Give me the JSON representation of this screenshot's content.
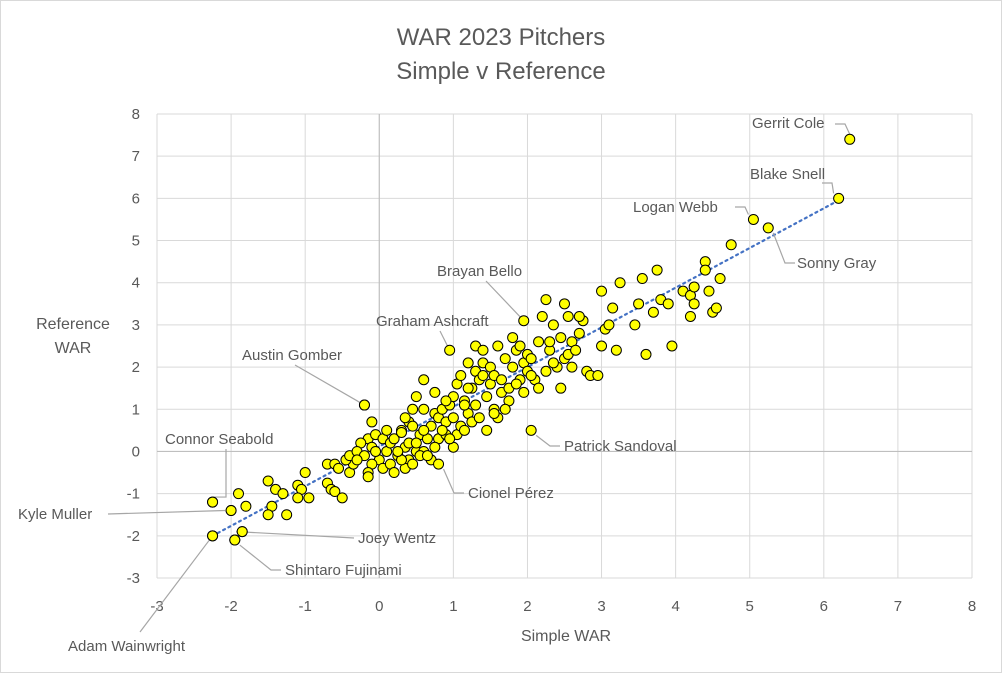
{
  "chart_data": {
    "type": "scatter",
    "title": "WAR 2023 Pitchers",
    "subtitle": "Simple v Reference",
    "xlabel": "Simple WAR",
    "ylabel_lines": [
      "Reference",
      "WAR"
    ],
    "xlim": [
      -3,
      8
    ],
    "ylim": [
      -3,
      8
    ],
    "xticks": [
      -3,
      -2,
      -1,
      0,
      1,
      2,
      3,
      4,
      5,
      6,
      7,
      8
    ],
    "yticks": [
      -3,
      -2,
      -1,
      0,
      1,
      2,
      3,
      4,
      5,
      6,
      7,
      8
    ],
    "grid": true,
    "trendline": {
      "style": "dotted",
      "color": "#4472c4",
      "from": [
        -2.25,
        -2.0
      ],
      "to": [
        6.25,
        6.0
      ]
    },
    "marker": {
      "fill": "#ffff00",
      "stroke": "#000000"
    },
    "labeled_points": [
      {
        "name": "Gerrit Cole",
        "x": 6.35,
        "y": 7.4
      },
      {
        "name": "Blake Snell",
        "x": 6.2,
        "y": 6.0
      },
      {
        "name": "Logan Webb",
        "x": 5.05,
        "y": 5.5
      },
      {
        "name": "Sonny Gray",
        "x": 5.25,
        "y": 5.3
      },
      {
        "name": "Brayan Bello",
        "x": 1.95,
        "y": 3.1
      },
      {
        "name": "Graham Ashcraft",
        "x": 0.95,
        "y": 2.4
      },
      {
        "name": "Austin Gomber",
        "x": -0.2,
        "y": 1.1
      },
      {
        "name": "Patrick Sandoval",
        "x": 2.05,
        "y": 0.5
      },
      {
        "name": "Cionel Pérez",
        "x": 0.8,
        "y": -0.3
      },
      {
        "name": "Connor Seabold",
        "x": -2.25,
        "y": -1.2
      },
      {
        "name": "Kyle Muller",
        "x": -2.0,
        "y": -1.4
      },
      {
        "name": "Joey Wentz",
        "x": -1.85,
        "y": -1.9
      },
      {
        "name": "Shintaro Fujinami",
        "x": -1.95,
        "y": -2.1
      },
      {
        "name": "Adam Wainwright",
        "x": -2.25,
        "y": -2.0
      }
    ],
    "points": [
      [
        -2.25,
        -1.2
      ],
      [
        -2.0,
        -1.4
      ],
      [
        -1.85,
        -1.9
      ],
      [
        -1.95,
        -2.1
      ],
      [
        -2.25,
        -2.0
      ],
      [
        -1.9,
        -1.0
      ],
      [
        -1.8,
        -1.3
      ],
      [
        -1.5,
        -0.7
      ],
      [
        -1.4,
        -0.9
      ],
      [
        -1.3,
        -1.0
      ],
      [
        -1.45,
        -1.3
      ],
      [
        -1.5,
        -1.5
      ],
      [
        -1.25,
        -1.5
      ],
      [
        -1.1,
        -0.8
      ],
      [
        -1.05,
        -0.9
      ],
      [
        -1.1,
        -1.1
      ],
      [
        -0.95,
        -1.1
      ],
      [
        -1.0,
        -0.5
      ],
      [
        -0.7,
        -0.3
      ],
      [
        -0.6,
        -0.3
      ],
      [
        -0.7,
        -0.75
      ],
      [
        -0.65,
        -0.9
      ],
      [
        -0.6,
        -0.95
      ],
      [
        -0.5,
        -1.1
      ],
      [
        -0.4,
        -0.5
      ],
      [
        -0.35,
        -0.3
      ],
      [
        -0.45,
        -0.2
      ],
      [
        -0.4,
        -0.1
      ],
      [
        -0.2,
        1.1
      ],
      [
        -0.1,
        0.7
      ],
      [
        -0.15,
        0.3
      ],
      [
        -0.25,
        0.2
      ],
      [
        -0.3,
        0.0
      ],
      [
        -0.2,
        -0.1
      ],
      [
        -0.1,
        0.1
      ],
      [
        -0.05,
        0.4
      ],
      [
        0.05,
        0.3
      ],
      [
        0.1,
        0.0
      ],
      [
        0.15,
        0.2
      ],
      [
        0.0,
        -0.2
      ],
      [
        -0.1,
        -0.3
      ],
      [
        -0.15,
        -0.5
      ],
      [
        -0.15,
        -0.6
      ],
      [
        0.05,
        -0.4
      ],
      [
        0.2,
        0.3
      ],
      [
        0.3,
        0.5
      ],
      [
        0.35,
        0.1
      ],
      [
        0.4,
        0.2
      ],
      [
        0.25,
        -0.1
      ],
      [
        0.3,
        0.45
      ],
      [
        0.4,
        0.7
      ],
      [
        0.45,
        1.0
      ],
      [
        0.5,
        1.3
      ],
      [
        0.6,
        1.7
      ],
      [
        0.45,
        0.6
      ],
      [
        0.55,
        0.4
      ],
      [
        0.5,
        0.0
      ],
      [
        0.4,
        -0.2
      ],
      [
        0.35,
        -0.4
      ],
      [
        0.6,
        0.0
      ],
      [
        0.65,
        0.3
      ],
      [
        0.7,
        0.6
      ],
      [
        0.75,
        0.9
      ],
      [
        0.8,
        0.8
      ],
      [
        0.85,
        1.0
      ],
      [
        0.9,
        0.7
      ],
      [
        0.7,
        -0.2
      ],
      [
        0.8,
        0.3
      ],
      [
        0.75,
        0.1
      ],
      [
        0.9,
        0.4
      ],
      [
        0.95,
        1.1
      ],
      [
        1.0,
        1.3
      ],
      [
        1.0,
        0.8
      ],
      [
        1.05,
        1.6
      ],
      [
        1.1,
        1.8
      ],
      [
        1.15,
        1.2
      ],
      [
        1.2,
        0.9
      ],
      [
        1.05,
        0.4
      ],
      [
        1.0,
        0.1
      ],
      [
        1.1,
        0.6
      ],
      [
        1.25,
        1.5
      ],
      [
        1.3,
        1.9
      ],
      [
        1.35,
        1.7
      ],
      [
        1.4,
        2.1
      ],
      [
        1.45,
        1.3
      ],
      [
        1.5,
        1.6
      ],
      [
        1.55,
        1.0
      ],
      [
        1.6,
        2.5
      ],
      [
        1.2,
        1.5
      ],
      [
        1.25,
        0.7
      ],
      [
        1.3,
        1.1
      ],
      [
        1.4,
        1.8
      ],
      [
        1.5,
        2.0
      ],
      [
        1.55,
        1.8
      ],
      [
        1.6,
        0.8
      ],
      [
        1.65,
        1.7
      ],
      [
        1.7,
        2.2
      ],
      [
        1.75,
        1.2
      ],
      [
        1.8,
        2.0
      ],
      [
        1.85,
        2.4
      ],
      [
        1.9,
        1.7
      ],
      [
        1.95,
        2.1
      ],
      [
        2.0,
        1.9
      ],
      [
        1.8,
        2.7
      ],
      [
        1.9,
        2.5
      ],
      [
        2.0,
        2.3
      ],
      [
        2.1,
        1.7
      ],
      [
        2.15,
        2.6
      ],
      [
        2.2,
        3.2
      ],
      [
        2.25,
        3.6
      ],
      [
        2.3,
        2.4
      ],
      [
        2.35,
        3.0
      ],
      [
        2.4,
        2.0
      ],
      [
        2.45,
        1.5
      ],
      [
        2.5,
        2.2
      ],
      [
        2.55,
        3.2
      ],
      [
        2.6,
        2.6
      ],
      [
        2.5,
        3.5
      ],
      [
        2.7,
        2.8
      ],
      [
        2.75,
        3.1
      ],
      [
        2.8,
        1.9
      ],
      [
        2.85,
        1.8
      ],
      [
        2.95,
        1.8
      ],
      [
        3.0,
        2.5
      ],
      [
        3.05,
        2.9
      ],
      [
        3.1,
        3.0
      ],
      [
        3.0,
        3.8
      ],
      [
        3.15,
        3.4
      ],
      [
        3.25,
        4.0
      ],
      [
        3.2,
        2.4
      ],
      [
        3.45,
        3.0
      ],
      [
        3.5,
        3.5
      ],
      [
        3.55,
        4.1
      ],
      [
        3.6,
        2.3
      ],
      [
        3.7,
        3.3
      ],
      [
        3.75,
        4.3
      ],
      [
        3.8,
        3.6
      ],
      [
        3.9,
        3.5
      ],
      [
        3.95,
        2.5
      ],
      [
        4.1,
        3.8
      ],
      [
        4.2,
        3.2
      ],
      [
        4.2,
        3.7
      ],
      [
        4.25,
        3.9
      ],
      [
        4.4,
        4.5
      ],
      [
        4.4,
        4.3
      ],
      [
        4.45,
        3.8
      ],
      [
        4.5,
        3.3
      ],
      [
        4.55,
        3.4
      ],
      [
        4.6,
        4.1
      ],
      [
        4.75,
        4.9
      ],
      [
        4.25,
        3.5
      ],
      [
        0.15,
        -0.3
      ],
      [
        0.2,
        -0.5
      ],
      [
        0.3,
        -0.2
      ],
      [
        0.25,
        0.0
      ],
      [
        0.5,
        0.2
      ],
      [
        0.55,
        -0.1
      ],
      [
        0.65,
        -0.1
      ],
      [
        0.6,
        0.5
      ],
      [
        0.85,
        0.5
      ],
      [
        0.95,
        0.3
      ],
      [
        1.15,
        0.5
      ],
      [
        1.35,
        0.8
      ],
      [
        1.45,
        0.5
      ],
      [
        1.55,
        0.9
      ],
      [
        1.65,
        1.4
      ],
      [
        1.75,
        1.5
      ],
      [
        1.85,
        1.6
      ],
      [
        1.95,
        1.4
      ],
      [
        2.05,
        1.8
      ],
      [
        2.15,
        1.5
      ],
      [
        2.25,
        1.9
      ],
      [
        2.3,
        2.6
      ],
      [
        2.45,
        2.7
      ],
      [
        2.55,
        2.3
      ],
      [
        2.65,
        2.4
      ],
      [
        2.7,
        3.2
      ],
      [
        2.35,
        2.1
      ],
      [
        2.6,
        2.0
      ],
      [
        2.05,
        2.2
      ],
      [
        1.7,
        1.0
      ],
      [
        1.2,
        2.1
      ],
      [
        1.3,
        2.5
      ],
      [
        1.4,
        2.4
      ],
      [
        1.15,
        1.1
      ],
      [
        0.9,
        1.2
      ],
      [
        0.75,
        1.4
      ],
      [
        0.6,
        1.0
      ],
      [
        0.35,
        0.8
      ],
      [
        0.1,
        0.5
      ],
      [
        -0.05,
        0.0
      ],
      [
        -0.3,
        -0.2
      ],
      [
        -0.55,
        -0.4
      ],
      [
        0.45,
        -0.3
      ]
    ]
  }
}
